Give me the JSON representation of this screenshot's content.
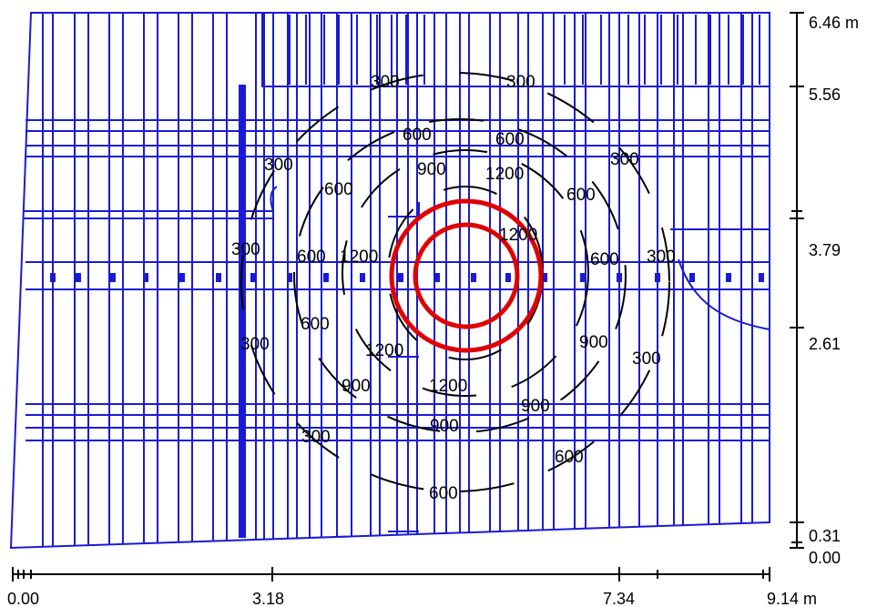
{
  "colors": {
    "structure": "#1a1ad6",
    "contour": "#000000",
    "calc_circle": "#e00000",
    "background": "#ffffff"
  },
  "contours": {
    "levels": [
      300,
      600,
      900,
      1200
    ],
    "labels": [
      {
        "text": "300"
      },
      {
        "text": "300"
      },
      {
        "text": "300"
      },
      {
        "text": "300"
      },
      {
        "text": "300"
      },
      {
        "text": "300"
      },
      {
        "text": "300"
      },
      {
        "text": "300"
      },
      {
        "text": "300"
      },
      {
        "text": "600"
      },
      {
        "text": "600"
      },
      {
        "text": "600"
      },
      {
        "text": "600"
      },
      {
        "text": "600"
      },
      {
        "text": "600"
      },
      {
        "text": "600"
      },
      {
        "text": "600"
      },
      {
        "text": "600"
      },
      {
        "text": "900"
      },
      {
        "text": "900"
      },
      {
        "text": "900"
      },
      {
        "text": "900"
      },
      {
        "text": "900"
      },
      {
        "text": "1200"
      },
      {
        "text": "1200"
      },
      {
        "text": "1200"
      },
      {
        "text": "1200"
      },
      {
        "text": "1200"
      }
    ]
  },
  "dimensions": {
    "horizontal": [
      "0.00",
      "3.18",
      "7.34",
      "9.14 m"
    ],
    "vertical": [
      "6.46 m",
      "5.56",
      "3.79",
      "2.61",
      "0.31",
      "0.00"
    ]
  }
}
